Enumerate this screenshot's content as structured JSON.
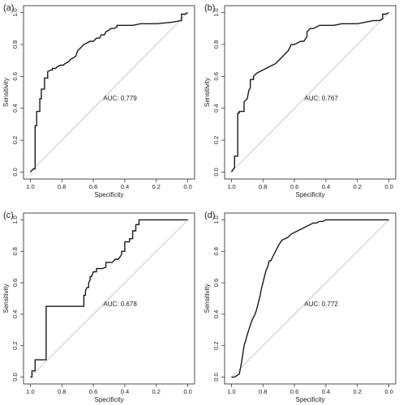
{
  "chart_data": [
    {
      "type": "line",
      "panel_label": "(a)",
      "xlabel": "Specificity",
      "ylabel": "Sensitivity",
      "xlim": [
        1.0,
        0.0
      ],
      "ylim": [
        0.0,
        1.0
      ],
      "xticks": [
        "1.0",
        "0.8",
        "0.6",
        "0.4",
        "0.2",
        "0.0"
      ],
      "yticks": [
        "0.0",
        "0.2",
        "0.4",
        "0.6",
        "0.8",
        "1.0"
      ],
      "reference_line": true,
      "annotation": "AUC: 0.779",
      "series": [
        {
          "x": [
            1.0,
            0.98,
            0.97,
            0.97,
            0.96,
            0.96,
            0.94,
            0.94,
            0.93,
            0.93,
            0.91,
            0.91,
            0.89,
            0.89,
            0.87,
            0.86,
            0.86,
            0.84,
            0.83,
            0.81,
            0.79,
            0.78,
            0.76,
            0.74,
            0.72,
            0.71,
            0.7,
            0.68,
            0.67,
            0.66,
            0.66,
            0.64,
            0.62,
            0.6,
            0.58,
            0.56,
            0.55,
            0.53,
            0.52,
            0.5,
            0.49,
            0.47,
            0.45,
            0.45,
            0.4,
            0.35,
            0.3,
            0.2,
            0.1,
            0.04,
            0.04,
            0.02,
            0.0
          ],
          "y": [
            0.0,
            0.02,
            0.02,
            0.29,
            0.29,
            0.38,
            0.38,
            0.46,
            0.46,
            0.52,
            0.52,
            0.59,
            0.59,
            0.63,
            0.64,
            0.64,
            0.65,
            0.65,
            0.66,
            0.67,
            0.67,
            0.68,
            0.69,
            0.71,
            0.72,
            0.73,
            0.76,
            0.78,
            0.79,
            0.8,
            0.8,
            0.81,
            0.82,
            0.82,
            0.84,
            0.84,
            0.86,
            0.86,
            0.88,
            0.89,
            0.9,
            0.9,
            0.91,
            0.92,
            0.92,
            0.92,
            0.93,
            0.93,
            0.94,
            0.95,
            0.99,
            0.99,
            1.0
          ]
        }
      ]
    },
    {
      "type": "line",
      "panel_label": "(b)",
      "xlabel": "Specificity",
      "ylabel": "Sensitivity",
      "xlim": [
        1.0,
        0.0
      ],
      "ylim": [
        0.0,
        1.0
      ],
      "xticks": [
        "1.0",
        "0.8",
        "0.6",
        "0.4",
        "0.2",
        "0.0"
      ],
      "yticks": [
        "0.0",
        "0.2",
        "0.4",
        "0.6",
        "0.8",
        "1.0"
      ],
      "reference_line": true,
      "annotation": "AUC: 0.767",
      "series": [
        {
          "x": [
            1.0,
            0.98,
            0.98,
            0.96,
            0.96,
            0.95,
            0.95,
            0.92,
            0.92,
            0.9,
            0.89,
            0.88,
            0.88,
            0.86,
            0.86,
            0.84,
            0.82,
            0.8,
            0.78,
            0.76,
            0.74,
            0.72,
            0.7,
            0.68,
            0.66,
            0.64,
            0.63,
            0.62,
            0.6,
            0.58,
            0.56,
            0.54,
            0.52,
            0.52,
            0.5,
            0.48,
            0.46,
            0.44,
            0.4,
            0.35,
            0.3,
            0.25,
            0.2,
            0.15,
            0.1,
            0.06,
            0.04,
            0.04,
            0.02,
            0.0
          ],
          "y": [
            0.0,
            0.03,
            0.1,
            0.1,
            0.37,
            0.37,
            0.38,
            0.38,
            0.44,
            0.46,
            0.51,
            0.53,
            0.58,
            0.58,
            0.6,
            0.62,
            0.63,
            0.64,
            0.65,
            0.66,
            0.67,
            0.68,
            0.7,
            0.72,
            0.74,
            0.76,
            0.78,
            0.8,
            0.8,
            0.81,
            0.82,
            0.82,
            0.85,
            0.88,
            0.9,
            0.9,
            0.91,
            0.92,
            0.92,
            0.92,
            0.93,
            0.93,
            0.93,
            0.94,
            0.95,
            0.95,
            0.96,
            0.99,
            0.99,
            1.0
          ]
        }
      ]
    },
    {
      "type": "line",
      "panel_label": "(c)",
      "xlabel": "Specificity",
      "ylabel": "Sensitivity",
      "xlim": [
        1.0,
        0.0
      ],
      "ylim": [
        0.0,
        1.0
      ],
      "xticks": [
        "1.0",
        "0.8",
        "0.6",
        "0.4",
        "0.2",
        "0.0"
      ],
      "yticks": [
        "0.0",
        "0.2",
        "0.4",
        "0.6",
        "0.8",
        "1.0"
      ],
      "reference_line": true,
      "annotation": "AUC: 0.678",
      "series": [
        {
          "x": [
            1.0,
            0.99,
            0.99,
            0.97,
            0.97,
            0.9,
            0.9,
            0.66,
            0.66,
            0.65,
            0.65,
            0.64,
            0.63,
            0.63,
            0.62,
            0.62,
            0.61,
            0.6,
            0.58,
            0.58,
            0.54,
            0.52,
            0.52,
            0.48,
            0.46,
            0.44,
            0.42,
            0.42,
            0.4,
            0.4,
            0.37,
            0.37,
            0.35,
            0.35,
            0.33,
            0.33,
            0.31,
            0.31,
            0.0
          ],
          "y": [
            0.0,
            0.0,
            0.04,
            0.04,
            0.11,
            0.11,
            0.45,
            0.45,
            0.52,
            0.52,
            0.55,
            0.57,
            0.57,
            0.6,
            0.62,
            0.64,
            0.64,
            0.67,
            0.67,
            0.69,
            0.69,
            0.7,
            0.73,
            0.73,
            0.75,
            0.75,
            0.78,
            0.8,
            0.8,
            0.86,
            0.86,
            0.88,
            0.88,
            0.93,
            0.93,
            0.97,
            0.97,
            1.0,
            1.0
          ]
        }
      ]
    },
    {
      "type": "line",
      "panel_label": "(d)",
      "xlabel": "Specificity",
      "ylabel": "Sensitivity",
      "xlim": [
        1.0,
        0.0
      ],
      "ylim": [
        0.0,
        1.0
      ],
      "xticks": [
        "1.0",
        "0.8",
        "0.6",
        "0.4",
        "0.2",
        "0.0"
      ],
      "yticks": [
        "0.0",
        "0.2",
        "0.4",
        "0.6",
        "0.8",
        "1.0"
      ],
      "reference_line": true,
      "annotation": "AUC: 0.772",
      "series": [
        {
          "x": [
            1.0,
            0.98,
            0.95,
            0.94,
            0.93,
            0.92,
            0.91,
            0.9,
            0.89,
            0.88,
            0.87,
            0.86,
            0.85,
            0.84,
            0.83,
            0.82,
            0.81,
            0.8,
            0.79,
            0.78,
            0.77,
            0.76,
            0.75,
            0.74,
            0.72,
            0.7,
            0.68,
            0.66,
            0.64,
            0.62,
            0.6,
            0.58,
            0.56,
            0.54,
            0.52,
            0.5,
            0.48,
            0.46,
            0.44,
            0.42,
            0.4,
            0.35,
            0.3,
            0.2,
            0.1,
            0.0
          ],
          "y": [
            0.0,
            0.0,
            0.02,
            0.07,
            0.13,
            0.2,
            0.23,
            0.27,
            0.3,
            0.33,
            0.36,
            0.38,
            0.4,
            0.43,
            0.47,
            0.51,
            0.56,
            0.6,
            0.64,
            0.68,
            0.7,
            0.74,
            0.74,
            0.76,
            0.8,
            0.84,
            0.87,
            0.88,
            0.89,
            0.91,
            0.92,
            0.93,
            0.94,
            0.95,
            0.96,
            0.97,
            0.98,
            0.98,
            0.99,
            0.99,
            1.0,
            1.0,
            1.0,
            1.0,
            1.0,
            1.0
          ]
        }
      ]
    }
  ]
}
